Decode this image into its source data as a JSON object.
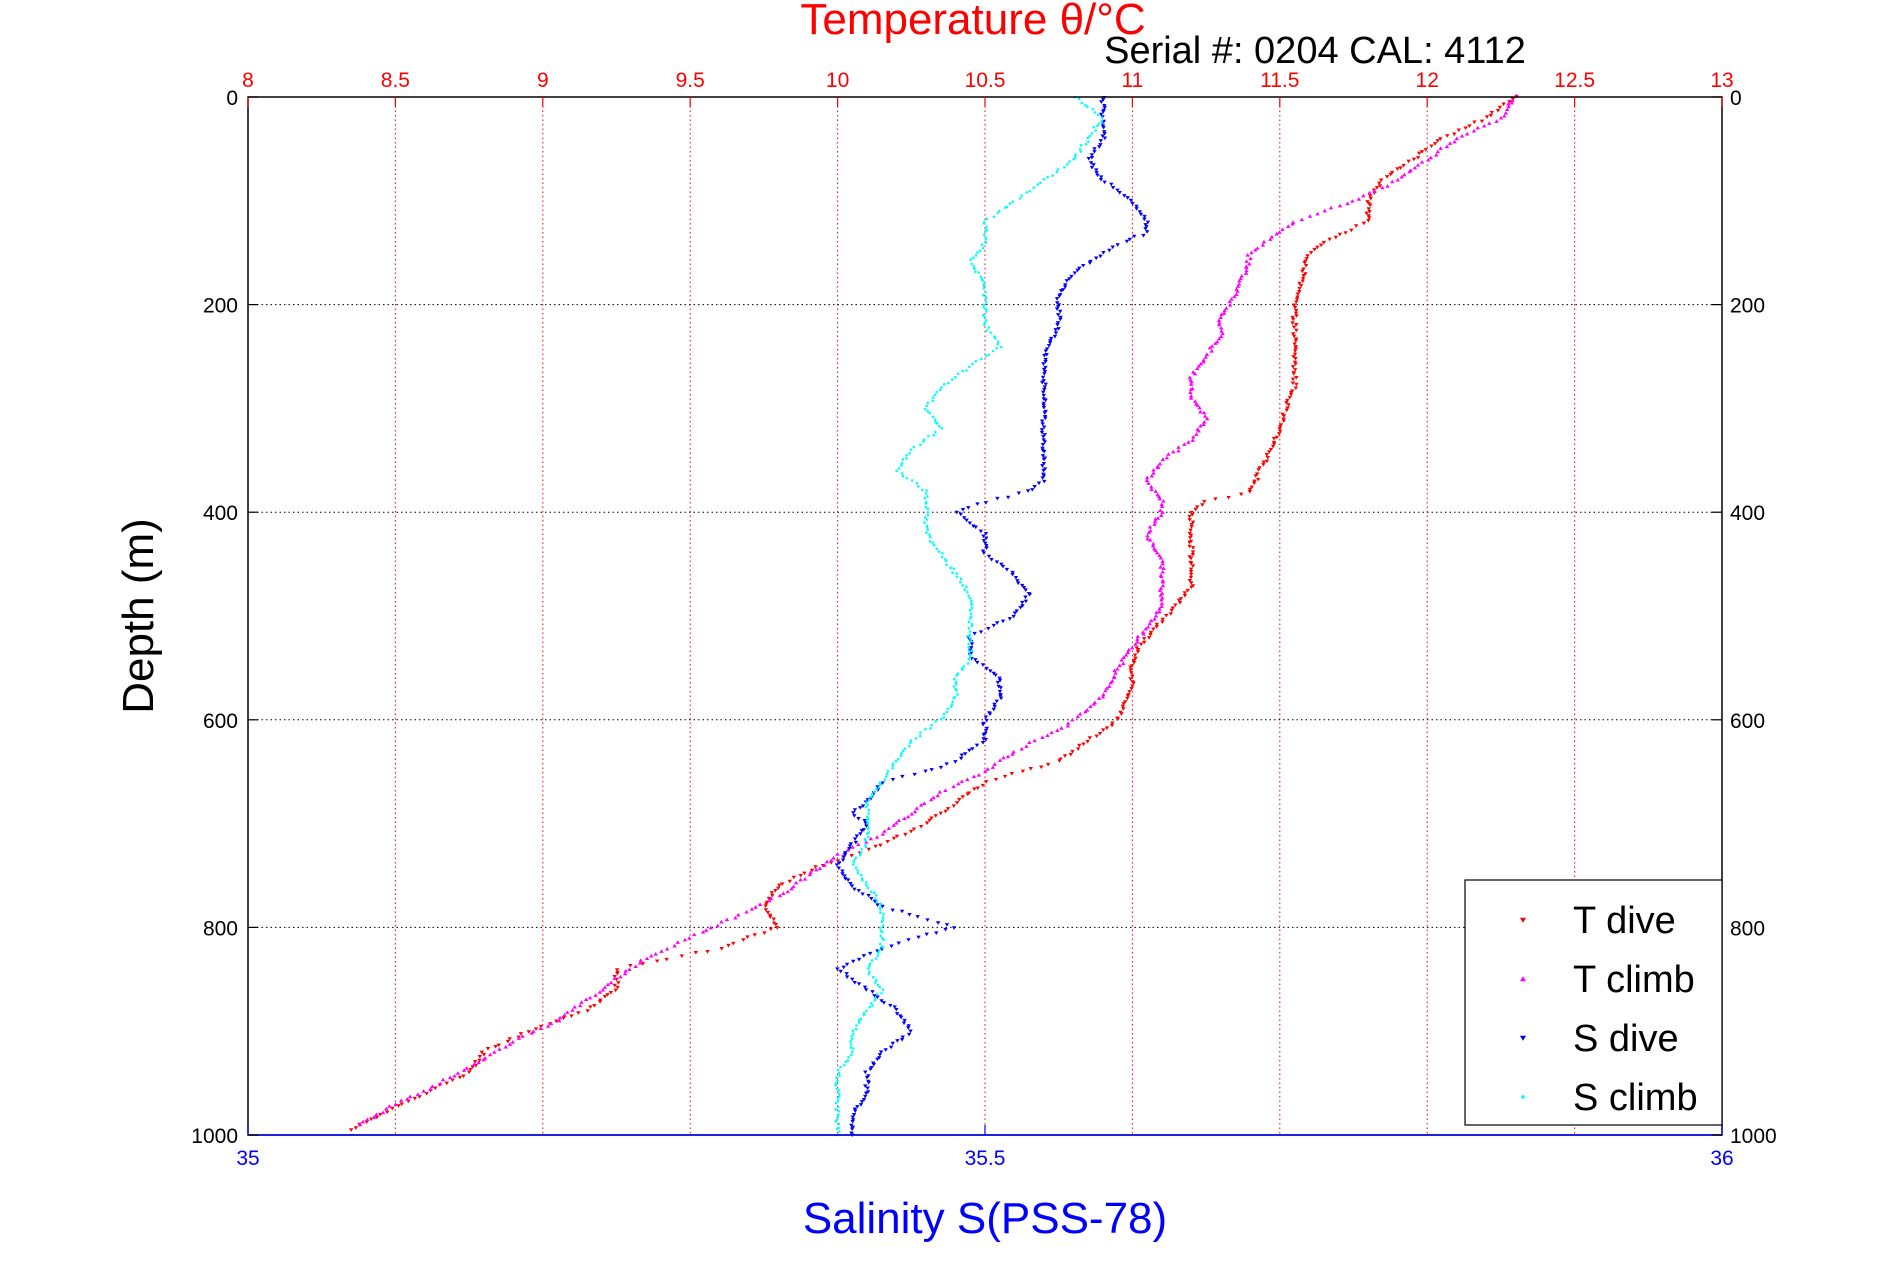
{
  "chart_data": {
    "type": "scatter",
    "title": "Temperature θ/°C",
    "subtitle": "Serial #: 0204  CAL: 4112",
    "xlabel_top": "Temperature θ/°C",
    "xlabel_bottom": "Salinity S(PSS-78)",
    "ylabel": "Depth (m)",
    "temperature_axis": {
      "lim": [
        8,
        13
      ],
      "ticks": [
        8,
        8.5,
        9,
        9.5,
        10,
        10.5,
        11,
        11.5,
        12,
        12.5,
        13
      ],
      "tick_labels": [
        "8",
        "8.5",
        "9",
        "9.5",
        "10",
        "10.5",
        "11",
        "11.5",
        "12",
        "12.5",
        "13"
      ]
    },
    "salinity_axis": {
      "lim": [
        35,
        36
      ],
      "ticks": [
        35,
        35.5,
        36
      ],
      "tick_labels": [
        "35",
        "35.5",
        "36"
      ]
    },
    "depth_axis": {
      "lim": [
        0,
        1000
      ],
      "reversed": true,
      "ticks": [
        0,
        200,
        400,
        600,
        800,
        1000
      ],
      "tick_labels": [
        "0",
        "200",
        "400",
        "600",
        "800",
        "1000"
      ]
    },
    "grid": true,
    "legend_position": "bottom-right",
    "colors": {
      "temperature_axis": "#ff0000",
      "salinity_axis": "#0000ff",
      "grid_temperature": "#ff0000",
      "grid_depth": "#000000"
    },
    "series": [
      {
        "name": "T dive",
        "axis": "temperature",
        "marker": "down-triangle",
        "color": "#ff0000",
        "points": [
          [
            0,
            12.3
          ],
          [
            20,
            12.2
          ],
          [
            40,
            12.05
          ],
          [
            60,
            11.95
          ],
          [
            80,
            11.85
          ],
          [
            100,
            11.8
          ],
          [
            120,
            11.8
          ],
          [
            140,
            11.65
          ],
          [
            150,
            11.6
          ],
          [
            170,
            11.58
          ],
          [
            200,
            11.55
          ],
          [
            250,
            11.55
          ],
          [
            280,
            11.55
          ],
          [
            300,
            11.52
          ],
          [
            320,
            11.5
          ],
          [
            350,
            11.45
          ],
          [
            380,
            11.4
          ],
          [
            390,
            11.25
          ],
          [
            400,
            11.2
          ],
          [
            420,
            11.2
          ],
          [
            450,
            11.2
          ],
          [
            470,
            11.2
          ],
          [
            490,
            11.15
          ],
          [
            510,
            11.08
          ],
          [
            530,
            11.02
          ],
          [
            550,
            11.0
          ],
          [
            570,
            11.0
          ],
          [
            600,
            10.95
          ],
          [
            620,
            10.85
          ],
          [
            640,
            10.75
          ],
          [
            660,
            10.5
          ],
          [
            680,
            10.4
          ],
          [
            700,
            10.3
          ],
          [
            720,
            10.15
          ],
          [
            740,
            9.95
          ],
          [
            760,
            9.8
          ],
          [
            780,
            9.75
          ],
          [
            800,
            9.8
          ],
          [
            820,
            9.6
          ],
          [
            840,
            9.25
          ],
          [
            860,
            9.25
          ],
          [
            880,
            9.15
          ],
          [
            900,
            8.95
          ],
          [
            920,
            8.8
          ],
          [
            940,
            8.75
          ],
          [
            960,
            8.6
          ],
          [
            980,
            8.45
          ],
          [
            995,
            8.35
          ]
        ]
      },
      {
        "name": "T climb",
        "axis": "temperature",
        "marker": "up-triangle",
        "color": "#ff00ff",
        "points": [
          [
            0,
            12.3
          ],
          [
            20,
            12.25
          ],
          [
            40,
            12.1
          ],
          [
            60,
            12.0
          ],
          [
            80,
            11.9
          ],
          [
            100,
            11.75
          ],
          [
            120,
            11.55
          ],
          [
            140,
            11.45
          ],
          [
            150,
            11.4
          ],
          [
            170,
            11.38
          ],
          [
            190,
            11.35
          ],
          [
            210,
            11.3
          ],
          [
            230,
            11.3
          ],
          [
            250,
            11.25
          ],
          [
            270,
            11.2
          ],
          [
            290,
            11.2
          ],
          [
            310,
            11.25
          ],
          [
            330,
            11.2
          ],
          [
            350,
            11.1
          ],
          [
            370,
            11.05
          ],
          [
            390,
            11.1
          ],
          [
            400,
            11.1
          ],
          [
            420,
            11.05
          ],
          [
            450,
            11.1
          ],
          [
            470,
            11.1
          ],
          [
            490,
            11.1
          ],
          [
            510,
            11.05
          ],
          [
            530,
            11.0
          ],
          [
            550,
            10.95
          ],
          [
            570,
            10.92
          ],
          [
            590,
            10.85
          ],
          [
            610,
            10.75
          ],
          [
            630,
            10.6
          ],
          [
            650,
            10.5
          ],
          [
            670,
            10.35
          ],
          [
            690,
            10.25
          ],
          [
            710,
            10.15
          ],
          [
            730,
            10.0
          ],
          [
            750,
            9.9
          ],
          [
            770,
            9.8
          ],
          [
            790,
            9.65
          ],
          [
            810,
            9.5
          ],
          [
            830,
            9.35
          ],
          [
            850,
            9.25
          ],
          [
            870,
            9.15
          ],
          [
            890,
            9.05
          ],
          [
            910,
            8.9
          ],
          [
            930,
            8.78
          ],
          [
            950,
            8.65
          ],
          [
            970,
            8.5
          ],
          [
            990,
            8.38
          ]
        ]
      },
      {
        "name": "S dive",
        "axis": "salinity",
        "marker": "down-triangle",
        "color": "#0000ff",
        "points": [
          [
            0,
            35.58
          ],
          [
            20,
            35.58
          ],
          [
            40,
            35.58
          ],
          [
            60,
            35.57
          ],
          [
            80,
            35.58
          ],
          [
            100,
            35.6
          ],
          [
            120,
            35.61
          ],
          [
            130,
            35.61
          ],
          [
            150,
            35.58
          ],
          [
            170,
            35.56
          ],
          [
            190,
            35.55
          ],
          [
            220,
            35.55
          ],
          [
            250,
            35.54
          ],
          [
            280,
            35.54
          ],
          [
            310,
            35.54
          ],
          [
            340,
            35.54
          ],
          [
            370,
            35.54
          ],
          [
            380,
            35.53
          ],
          [
            390,
            35.5
          ],
          [
            400,
            35.48
          ],
          [
            420,
            35.5
          ],
          [
            440,
            35.5
          ],
          [
            460,
            35.52
          ],
          [
            480,
            35.53
          ],
          [
            500,
            35.52
          ],
          [
            520,
            35.49
          ],
          [
            540,
            35.49
          ],
          [
            560,
            35.51
          ],
          [
            580,
            35.51
          ],
          [
            600,
            35.5
          ],
          [
            620,
            35.5
          ],
          [
            640,
            35.48
          ],
          [
            650,
            35.46
          ],
          [
            660,
            35.43
          ],
          [
            680,
            35.42
          ],
          [
            690,
            35.41
          ],
          [
            700,
            35.42
          ],
          [
            720,
            35.41
          ],
          [
            740,
            35.4
          ],
          [
            760,
            35.41
          ],
          [
            780,
            35.43
          ],
          [
            800,
            35.48
          ],
          [
            820,
            35.43
          ],
          [
            840,
            35.4
          ],
          [
            860,
            35.42
          ],
          [
            880,
            35.44
          ],
          [
            900,
            35.45
          ],
          [
            920,
            35.43
          ],
          [
            940,
            35.42
          ],
          [
            960,
            35.42
          ],
          [
            980,
            35.41
          ],
          [
            1000,
            35.41
          ]
        ]
      },
      {
        "name": "S climb",
        "axis": "salinity",
        "marker": "dot",
        "color": "#00ffff",
        "points": [
          [
            0,
            35.56
          ],
          [
            20,
            35.58
          ],
          [
            40,
            35.57
          ],
          [
            60,
            35.56
          ],
          [
            80,
            35.54
          ],
          [
            100,
            35.52
          ],
          [
            120,
            35.5
          ],
          [
            140,
            35.5
          ],
          [
            160,
            35.49
          ],
          [
            180,
            35.5
          ],
          [
            200,
            35.5
          ],
          [
            220,
            35.5
          ],
          [
            240,
            35.51
          ],
          [
            260,
            35.49
          ],
          [
            280,
            35.47
          ],
          [
            300,
            35.46
          ],
          [
            320,
            35.47
          ],
          [
            340,
            35.45
          ],
          [
            360,
            35.44
          ],
          [
            380,
            35.46
          ],
          [
            400,
            35.46
          ],
          [
            420,
            35.46
          ],
          [
            440,
            35.47
          ],
          [
            460,
            35.48
          ],
          [
            480,
            35.49
          ],
          [
            500,
            35.49
          ],
          [
            520,
            35.49
          ],
          [
            540,
            35.49
          ],
          [
            560,
            35.48
          ],
          [
            580,
            35.48
          ],
          [
            600,
            35.47
          ],
          [
            620,
            35.45
          ],
          [
            640,
            35.44
          ],
          [
            660,
            35.43
          ],
          [
            680,
            35.42
          ],
          [
            700,
            35.42
          ],
          [
            720,
            35.42
          ],
          [
            740,
            35.41
          ],
          [
            760,
            35.42
          ],
          [
            780,
            35.43
          ],
          [
            800,
            35.43
          ],
          [
            820,
            35.43
          ],
          [
            840,
            35.42
          ],
          [
            860,
            35.43
          ],
          [
            880,
            35.42
          ],
          [
            900,
            35.41
          ],
          [
            920,
            35.41
          ],
          [
            940,
            35.4
          ],
          [
            960,
            35.4
          ],
          [
            980,
            35.4
          ],
          [
            1000,
            35.4
          ]
        ]
      }
    ]
  }
}
